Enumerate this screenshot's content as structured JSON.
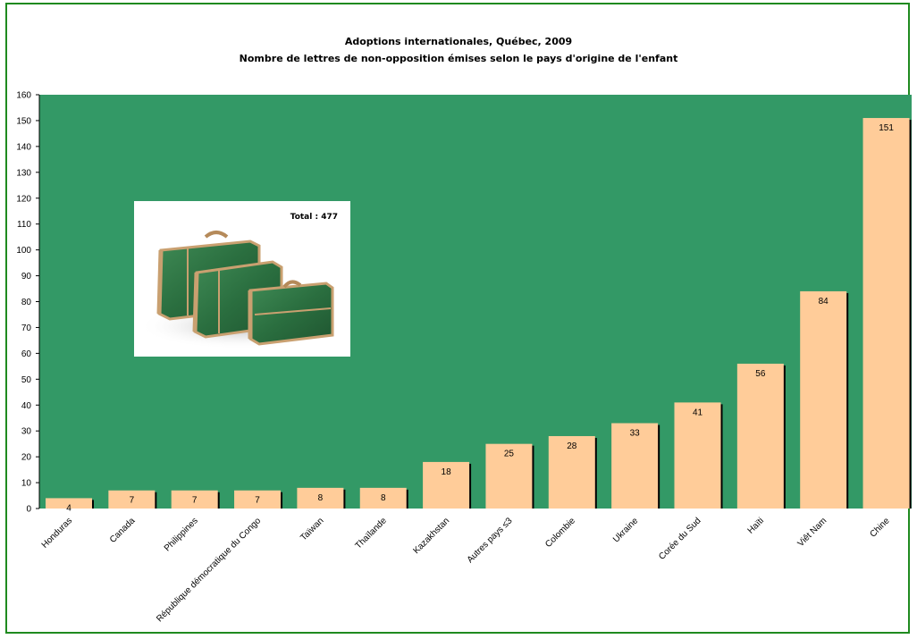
{
  "chart_data": {
    "type": "bar",
    "title": "Adoptions internationales, Québec, 2009",
    "subtitle": "Nombre de lettres de non-opposition émises selon le pays d'origine de l'enfant",
    "categories": [
      "Honduras",
      "Canada",
      "Philippines",
      "République démocratique du Congo",
      "Taïwan",
      "Thaïlande",
      "Kazakhstan",
      "Autres pays ≤3",
      "Colombie",
      "Ukraine",
      "Corée du Sud",
      "Haïti",
      "Viêt Nam",
      "Chine"
    ],
    "values": [
      4,
      7,
      7,
      7,
      8,
      8,
      18,
      25,
      28,
      33,
      41,
      56,
      84,
      151
    ],
    "ylim": [
      0,
      160
    ],
    "yticks": [
      0,
      10,
      20,
      30,
      40,
      50,
      60,
      70,
      80,
      90,
      100,
      110,
      120,
      130,
      140,
      150,
      160
    ],
    "grid": false,
    "annotation": "Total : 477",
    "colors": {
      "plot_background": "#339966",
      "bar": "#FFCC99",
      "bar_shadow": "#000000",
      "frame_border": "#1f8a1f"
    }
  },
  "image": {
    "icon": "suitcases-image"
  }
}
